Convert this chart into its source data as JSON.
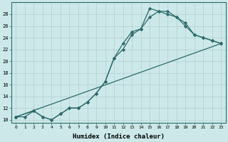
{
  "title": "",
  "xlabel": "Humidex (Indice chaleur)",
  "ylabel": "",
  "bg_color": "#cce8e8",
  "line_color": "#2d6b6b",
  "grid_color": "#aacccc",
  "xlim": [
    -0.5,
    23.5
  ],
  "ylim": [
    9.5,
    30
  ],
  "xticks": [
    0,
    1,
    2,
    3,
    4,
    5,
    6,
    7,
    8,
    9,
    10,
    11,
    12,
    13,
    14,
    15,
    16,
    17,
    18,
    19,
    20,
    21,
    22,
    23
  ],
  "yticks": [
    10,
    12,
    14,
    16,
    18,
    20,
    22,
    24,
    26,
    28
  ],
  "line1_x": [
    0,
    1,
    2,
    3,
    4,
    5,
    6,
    7,
    8,
    9,
    10,
    11,
    12,
    13,
    14,
    15,
    16,
    17,
    18,
    19,
    20,
    21,
    22,
    23
  ],
  "line1_y": [
    10.5,
    10.5,
    11.5,
    10.5,
    10,
    11,
    12,
    12,
    13,
    14.5,
    16.5,
    20.5,
    23,
    25,
    25.5,
    29,
    28.5,
    28.5,
    27.5,
    26.5,
    24.5,
    24,
    23.5,
    23
  ],
  "line2_x": [
    0,
    2,
    3,
    4,
    5,
    6,
    7,
    8,
    9,
    10,
    11,
    12,
    13,
    14,
    15,
    16,
    17,
    18,
    19,
    20,
    21,
    22,
    23
  ],
  "line2_y": [
    10.5,
    11.5,
    10.5,
    10,
    11,
    12,
    12,
    13,
    14.5,
    16.5,
    20.5,
    22,
    24.5,
    25.5,
    27.5,
    28.5,
    28,
    27.5,
    26,
    24.5,
    24,
    23.5,
    23
  ],
  "line3_x": [
    0,
    23
  ],
  "line3_y": [
    10.5,
    23
  ],
  "marker": "D",
  "markersize": 2.2,
  "linewidth": 0.9
}
